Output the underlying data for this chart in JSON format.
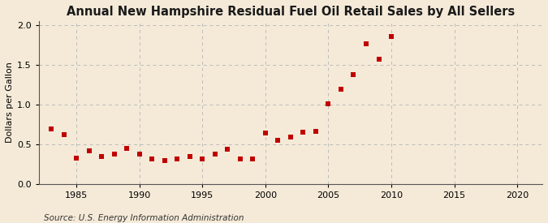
{
  "title": "Annual New Hampshire Residual Fuel Oil Retail Sales by All Sellers",
  "ylabel": "Dollars per Gallon",
  "source": "Source: U.S. Energy Information Administration",
  "background_color": "#f5ead8",
  "xlim": [
    1982,
    2022
  ],
  "ylim": [
    0.0,
    2.05
  ],
  "xticks": [
    1985,
    1990,
    1995,
    2000,
    2005,
    2010,
    2015,
    2020
  ],
  "yticks": [
    0.0,
    0.5,
    1.0,
    1.5,
    2.0
  ],
  "years": [
    1983,
    1984,
    1985,
    1986,
    1987,
    1988,
    1989,
    1990,
    1991,
    1992,
    1993,
    1994,
    1995,
    1996,
    1997,
    1998,
    1999,
    2000,
    2001,
    2002,
    2003,
    2004,
    2005,
    2006,
    2007,
    2008,
    2009,
    2010
  ],
  "values": [
    0.69,
    0.62,
    0.33,
    0.42,
    0.35,
    0.38,
    0.45,
    0.38,
    0.32,
    0.3,
    0.32,
    0.35,
    0.32,
    0.38,
    0.44,
    0.32,
    0.32,
    0.64,
    0.55,
    0.59,
    0.65,
    0.66,
    1.01,
    1.19,
    1.38,
    1.76,
    1.57,
    1.86
  ],
  "marker_color": "#c00000",
  "marker_size": 18,
  "grid_color": "#bbbbbb",
  "title_fontsize": 10.5,
  "label_fontsize": 8,
  "tick_fontsize": 8,
  "source_fontsize": 7.5
}
